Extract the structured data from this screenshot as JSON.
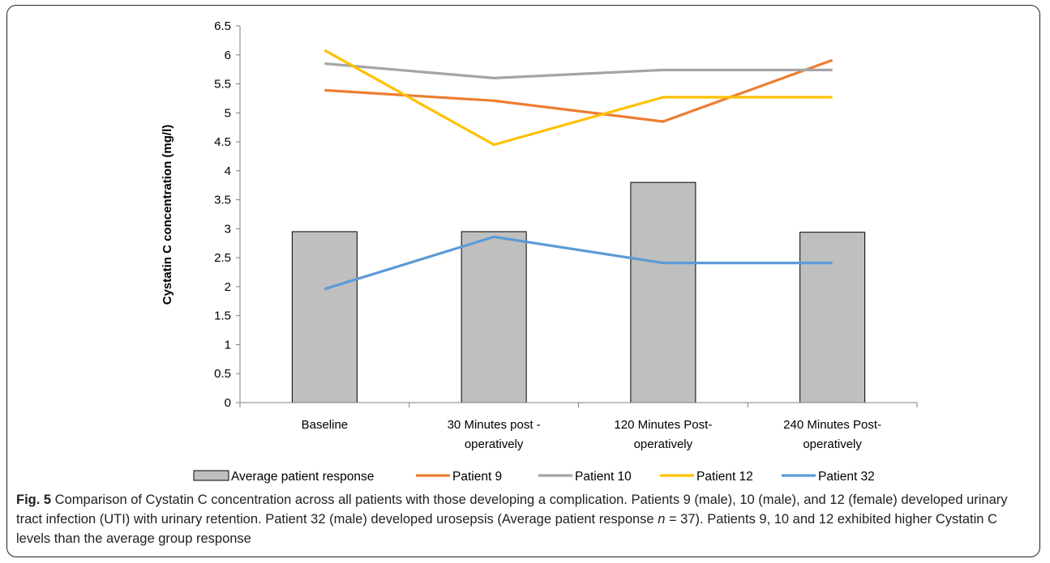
{
  "chart_data": {
    "type": "bar",
    "categories": [
      [
        "Baseline"
      ],
      [
        "30 Minutes post -",
        "operatively"
      ],
      [
        "120 Minutes Post-",
        "operatively"
      ],
      [
        "240 Minutes Post-",
        "operatively"
      ]
    ],
    "bar_series": {
      "name": "Average patient response",
      "values": [
        2.95,
        2.95,
        3.8,
        2.94
      ],
      "color": "#bfbfbf"
    },
    "line_series": [
      {
        "name": "Patient 9",
        "values": [
          5.39,
          5.21,
          4.85,
          5.91
        ],
        "color": "#ed7d31"
      },
      {
        "name": "Patient 10",
        "values": [
          5.85,
          5.6,
          5.74,
          5.74
        ],
        "color": "#a5a5a5"
      },
      {
        "name": "Patient 12",
        "values": [
          6.08,
          4.45,
          5.27,
          5.27
        ],
        "color": "#ffc000"
      },
      {
        "name": "Patient 32",
        "values": [
          1.96,
          2.86,
          2.41,
          2.41
        ],
        "color": "#5b9bd5"
      }
    ],
    "ylabel": "Cystatin C concentration (mg/l)",
    "ylim": [
      0,
      6.5
    ],
    "yticks": [
      "0",
      "0.5",
      "1",
      "1.5",
      "2",
      "2.5",
      "3",
      "3.5",
      "4",
      "4.5",
      "5",
      "5.5",
      "6",
      "6.5"
    ],
    "grid": false,
    "legend_position": "bottom"
  },
  "caption": {
    "label": "Fig. 5",
    "text_1": " Comparison of Cystatin C concentration across all patients with those developing a complication. Patients 9 (male), 10 (male), and 12 (female) developed urinary tract infection (UTI) with urinary retention. Patient 32 (male) developed urosepsis (Average patient response ",
    "n_symbol": "n",
    "text_2": " = 37). Patients 9, 10 and 12 exhibited higher Cystatin C levels than the average group response"
  }
}
